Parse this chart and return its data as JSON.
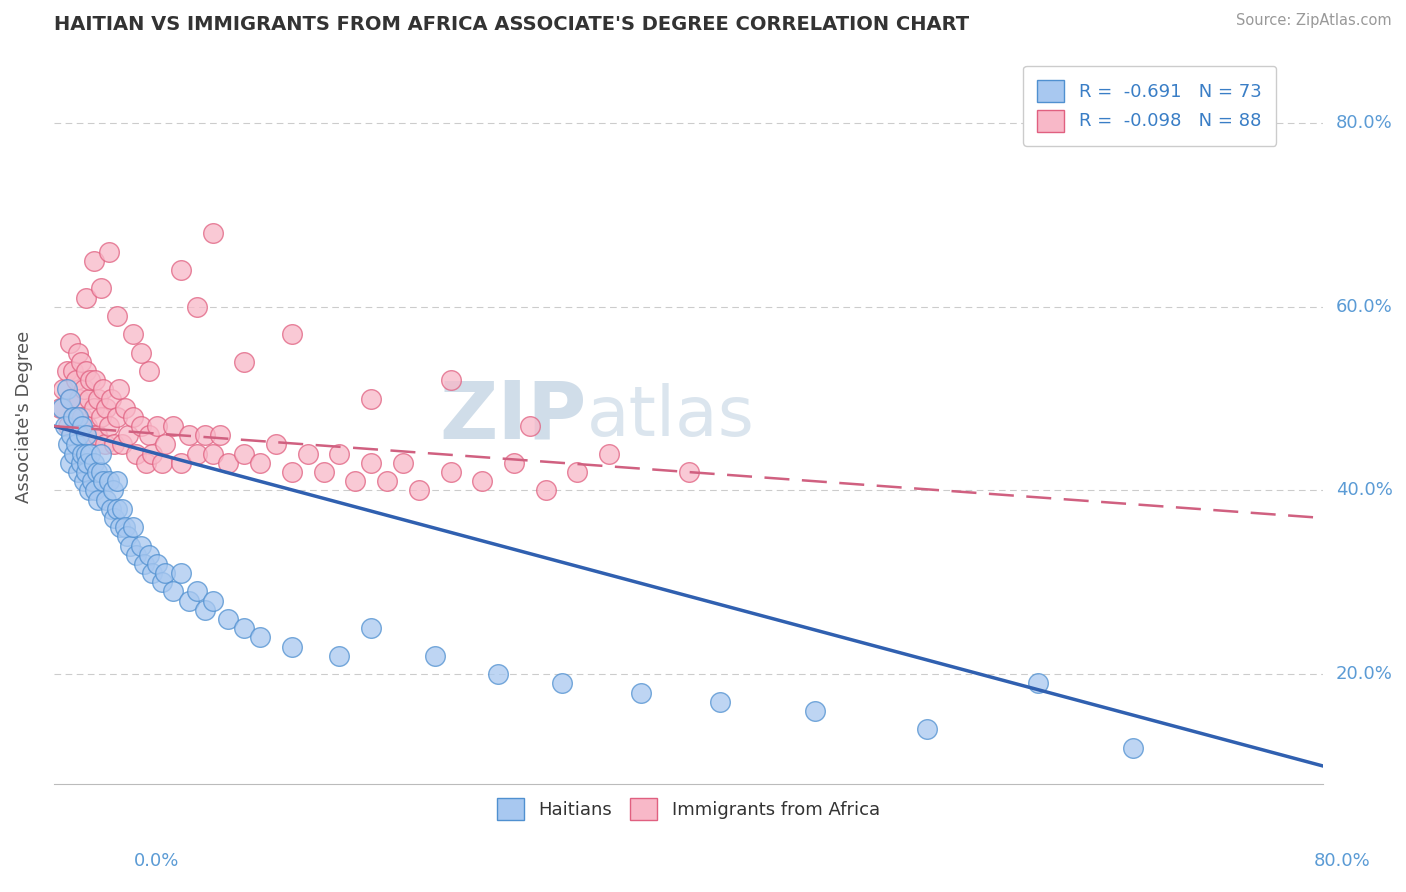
{
  "title": "HAITIAN VS IMMIGRANTS FROM AFRICA ASSOCIATE'S DEGREE CORRELATION CHART",
  "source": "Source: ZipAtlas.com",
  "ylabel": "Associate's Degree",
  "legend_r1": "R =  -0.691   N = 73",
  "legend_r2": "R =  -0.098   N = 88",
  "watermark_zip": "ZIP",
  "watermark_atlas": "atlas",
  "xmin": 0.0,
  "xmax": 0.8,
  "ymin": 0.08,
  "ymax": 0.88,
  "yticks": [
    0.2,
    0.4,
    0.6,
    0.8
  ],
  "ytick_labels": [
    "20.0%",
    "40.0%",
    "60.0%",
    "80.0%"
  ],
  "blue_fill": "#A8C8F0",
  "blue_edge": "#5090D0",
  "pink_fill": "#F8B8C8",
  "pink_edge": "#E06080",
  "blue_line_color": "#3060B0",
  "pink_line_color": "#D06080",
  "title_color": "#333333",
  "axis_color": "#5B9BD5",
  "grid_color": "#CCCCCC",
  "legend_text_color": "#3A7EC6",
  "haitian_x": [
    0.005,
    0.007,
    0.008,
    0.009,
    0.01,
    0.01,
    0.011,
    0.012,
    0.013,
    0.014,
    0.015,
    0.015,
    0.016,
    0.017,
    0.018,
    0.018,
    0.019,
    0.02,
    0.02,
    0.02,
    0.021,
    0.022,
    0.023,
    0.024,
    0.025,
    0.026,
    0.027,
    0.028,
    0.03,
    0.03,
    0.031,
    0.033,
    0.035,
    0.036,
    0.037,
    0.038,
    0.04,
    0.04,
    0.042,
    0.043,
    0.045,
    0.046,
    0.048,
    0.05,
    0.052,
    0.055,
    0.057,
    0.06,
    0.062,
    0.065,
    0.068,
    0.07,
    0.075,
    0.08,
    0.085,
    0.09,
    0.095,
    0.1,
    0.11,
    0.12,
    0.13,
    0.15,
    0.18,
    0.2,
    0.24,
    0.28,
    0.32,
    0.37,
    0.42,
    0.48,
    0.55,
    0.62,
    0.68
  ],
  "haitian_y": [
    0.49,
    0.47,
    0.51,
    0.45,
    0.5,
    0.43,
    0.46,
    0.48,
    0.44,
    0.45,
    0.48,
    0.42,
    0.46,
    0.43,
    0.44,
    0.47,
    0.41,
    0.46,
    0.44,
    0.42,
    0.43,
    0.4,
    0.44,
    0.41,
    0.43,
    0.4,
    0.42,
    0.39,
    0.42,
    0.44,
    0.41,
    0.39,
    0.41,
    0.38,
    0.4,
    0.37,
    0.38,
    0.41,
    0.36,
    0.38,
    0.36,
    0.35,
    0.34,
    0.36,
    0.33,
    0.34,
    0.32,
    0.33,
    0.31,
    0.32,
    0.3,
    0.31,
    0.29,
    0.31,
    0.28,
    0.29,
    0.27,
    0.28,
    0.26,
    0.25,
    0.24,
    0.23,
    0.22,
    0.25,
    0.22,
    0.2,
    0.19,
    0.18,
    0.17,
    0.16,
    0.14,
    0.19,
    0.12
  ],
  "africa_x": [
    0.004,
    0.006,
    0.008,
    0.009,
    0.01,
    0.01,
    0.012,
    0.013,
    0.014,
    0.015,
    0.015,
    0.016,
    0.017,
    0.018,
    0.019,
    0.02,
    0.021,
    0.022,
    0.023,
    0.024,
    0.025,
    0.026,
    0.027,
    0.028,
    0.03,
    0.031,
    0.032,
    0.033,
    0.035,
    0.036,
    0.038,
    0.04,
    0.041,
    0.043,
    0.045,
    0.047,
    0.05,
    0.052,
    0.055,
    0.058,
    0.06,
    0.062,
    0.065,
    0.068,
    0.07,
    0.075,
    0.08,
    0.085,
    0.09,
    0.095,
    0.1,
    0.105,
    0.11,
    0.12,
    0.13,
    0.14,
    0.15,
    0.16,
    0.17,
    0.18,
    0.19,
    0.2,
    0.21,
    0.22,
    0.23,
    0.25,
    0.27,
    0.29,
    0.31,
    0.33,
    0.02,
    0.025,
    0.03,
    0.035,
    0.05,
    0.06,
    0.08,
    0.1,
    0.04,
    0.055,
    0.09,
    0.12,
    0.15,
    0.2,
    0.25,
    0.3,
    0.35,
    0.4
  ],
  "africa_y": [
    0.49,
    0.51,
    0.53,
    0.47,
    0.56,
    0.5,
    0.53,
    0.48,
    0.52,
    0.55,
    0.46,
    0.5,
    0.54,
    0.48,
    0.51,
    0.53,
    0.47,
    0.5,
    0.52,
    0.46,
    0.49,
    0.52,
    0.46,
    0.5,
    0.48,
    0.51,
    0.45,
    0.49,
    0.47,
    0.5,
    0.45,
    0.48,
    0.51,
    0.45,
    0.49,
    0.46,
    0.48,
    0.44,
    0.47,
    0.43,
    0.46,
    0.44,
    0.47,
    0.43,
    0.45,
    0.47,
    0.43,
    0.46,
    0.44,
    0.46,
    0.44,
    0.46,
    0.43,
    0.44,
    0.43,
    0.45,
    0.42,
    0.44,
    0.42,
    0.44,
    0.41,
    0.43,
    0.41,
    0.43,
    0.4,
    0.42,
    0.41,
    0.43,
    0.4,
    0.42,
    0.61,
    0.65,
    0.62,
    0.66,
    0.57,
    0.53,
    0.64,
    0.68,
    0.59,
    0.55,
    0.6,
    0.54,
    0.57,
    0.5,
    0.52,
    0.47,
    0.44,
    0.42
  ]
}
